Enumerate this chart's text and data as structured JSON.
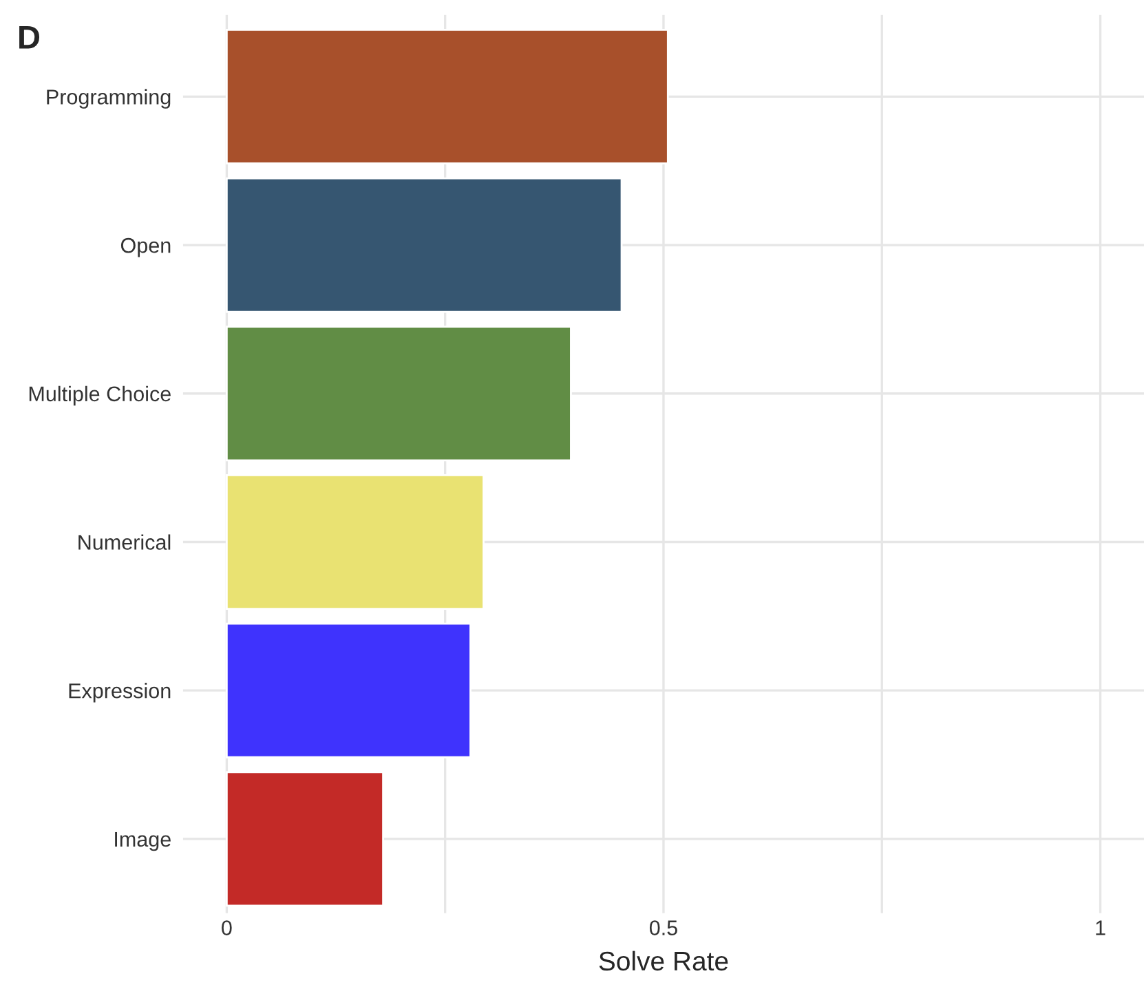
{
  "chart_data": {
    "type": "bar",
    "orientation": "horizontal",
    "title": "D",
    "xlabel": "Solve Rate",
    "categories": [
      "Programming",
      "Open",
      "Multiple Choice",
      "Numerical",
      "Expression",
      "Image"
    ],
    "values": [
      0.505,
      0.452,
      0.394,
      0.294,
      0.279,
      0.179
    ],
    "colors": [
      "#a8502b",
      "#365671",
      "#618d45",
      "#e9e272",
      "#3f33fd",
      "#c32a27"
    ],
    "xlim": [
      -0.05,
      1.05
    ],
    "xticks": [
      0,
      {
        "value": 0.25,
        "label": null
      },
      {
        "value": 0.5,
        "label": "0.5"
      },
      {
        "value": 0.75,
        "label": null
      },
      1
    ],
    "grid": true,
    "legend": false
  }
}
